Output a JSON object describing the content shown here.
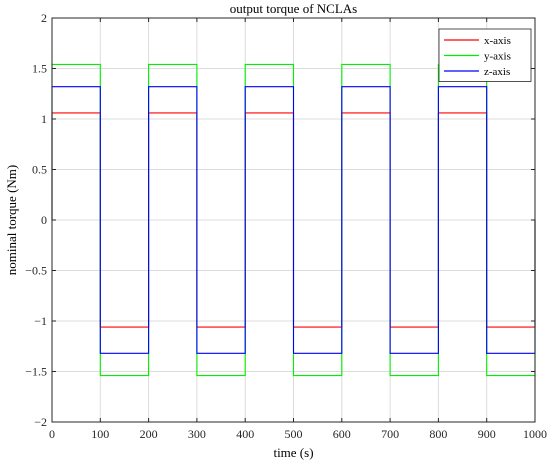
{
  "chart_data": {
    "type": "line",
    "title": "output torque of NCLAs",
    "xlabel": "time (s)",
    "ylabel": "nominal torque (Nm)",
    "xlim": [
      0,
      1000
    ],
    "ylim": [
      -2,
      2
    ],
    "x_ticks": [
      0,
      100,
      200,
      300,
      400,
      500,
      600,
      700,
      800,
      900,
      1000
    ],
    "y_ticks": [
      -2,
      -1.5,
      -1,
      -0.5,
      0,
      0.5,
      1,
      1.5,
      2
    ],
    "x_tick_labels": [
      "0",
      "100",
      "200",
      "300",
      "400",
      "500",
      "600",
      "700",
      "800",
      "900",
      "1000"
    ],
    "y_tick_labels": [
      "−2",
      "−1.5",
      "−1",
      "−0.5",
      "0",
      "0.5",
      "1",
      "1.5",
      "2"
    ],
    "grid": true,
    "legend_position": "top-right",
    "period": 200,
    "series": [
      {
        "name": "x-axis",
        "color": "#ff0000",
        "amplitude": 1.06
      },
      {
        "name": "y-axis",
        "color": "#00ee00",
        "amplitude": 1.54
      },
      {
        "name": "z-axis",
        "color": "#0000ff",
        "amplitude": 1.32
      }
    ]
  }
}
